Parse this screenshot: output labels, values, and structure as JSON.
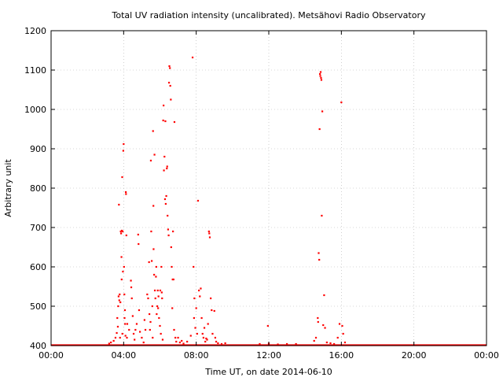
{
  "chart_data": {
    "type": "scatter",
    "title": "Total UV radiation intensity (uncalibrated). Metsähovi Radio Observatory",
    "xlabel": "Time UT, on date 2014-06-10",
    "ylabel": "Arbitrary unit",
    "x_unit": "hours UT",
    "xlim": [
      0,
      24
    ],
    "ylim": [
      400,
      1200
    ],
    "x_ticks": [
      {
        "value": 0,
        "label": "00:00"
      },
      {
        "value": 4,
        "label": "04:00"
      },
      {
        "value": 8,
        "label": "08:00"
      },
      {
        "value": 12,
        "label": "12:00"
      },
      {
        "value": 16,
        "label": "16:00"
      },
      {
        "value": 20,
        "label": "20:00"
      },
      {
        "value": 24,
        "label": "00:00"
      }
    ],
    "y_ticks": [
      {
        "value": 400,
        "label": "400"
      },
      {
        "value": 500,
        "label": "500"
      },
      {
        "value": 600,
        "label": "600"
      },
      {
        "value": 700,
        "label": "700"
      },
      {
        "value": 800,
        "label": "800"
      },
      {
        "value": 900,
        "label": "900"
      },
      {
        "value": 1000,
        "label": "1000"
      },
      {
        "value": 1100,
        "label": "1100"
      },
      {
        "value": 1200,
        "label": "1200"
      }
    ],
    "grid": true,
    "grid_style": "dotted",
    "legend": "none",
    "marker_color": "#ff0000",
    "baseline": {
      "value": 401,
      "x_range": [
        0,
        24
      ],
      "note": "continuous dense points along the bottom"
    },
    "points": [
      [
        3.2,
        405
      ],
      [
        3.3,
        408
      ],
      [
        3.45,
        412
      ],
      [
        3.55,
        420
      ],
      [
        3.62,
        432
      ],
      [
        3.65,
        470
      ],
      [
        3.68,
        448
      ],
      [
        3.7,
        500
      ],
      [
        3.72,
        525
      ],
      [
        3.74,
        758
      ],
      [
        3.76,
        515
      ],
      [
        3.78,
        530
      ],
      [
        3.8,
        420
      ],
      [
        3.82,
        510
      ],
      [
        3.84,
        690
      ],
      [
        3.86,
        685
      ],
      [
        3.88,
        625
      ],
      [
        3.89,
        568
      ],
      [
        3.9,
        692
      ],
      [
        3.92,
        828
      ],
      [
        3.93,
        430
      ],
      [
        3.95,
        690
      ],
      [
        3.96,
        588
      ],
      [
        3.98,
        895
      ],
      [
        4.0,
        912
      ],
      [
        4.02,
        600
      ],
      [
        4.04,
        530
      ],
      [
        4.05,
        470
      ],
      [
        4.07,
        490
      ],
      [
        4.08,
        455
      ],
      [
        4.1,
        425
      ],
      [
        4.12,
        790
      ],
      [
        4.13,
        785
      ],
      [
        4.15,
        680
      ],
      [
        4.18,
        420
      ],
      [
        4.2,
        455
      ],
      [
        4.3,
        440
      ],
      [
        4.4,
        565
      ],
      [
        4.42,
        548
      ],
      [
        4.45,
        520
      ],
      [
        4.5,
        475
      ],
      [
        4.55,
        430
      ],
      [
        4.6,
        415
      ],
      [
        4.65,
        440
      ],
      [
        4.72,
        455
      ],
      [
        4.8,
        682
      ],
      [
        4.82,
        658
      ],
      [
        4.85,
        490
      ],
      [
        4.9,
        435
      ],
      [
        5.0,
        420
      ],
      [
        5.1,
        408
      ],
      [
        5.15,
        465
      ],
      [
        5.2,
        440
      ],
      [
        5.3,
        530
      ],
      [
        5.35,
        520
      ],
      [
        5.4,
        612
      ],
      [
        5.42,
        480
      ],
      [
        5.45,
        440
      ],
      [
        5.48,
        460
      ],
      [
        5.5,
        870
      ],
      [
        5.52,
        690
      ],
      [
        5.55,
        615
      ],
      [
        5.58,
        500
      ],
      [
        5.6,
        420
      ],
      [
        5.62,
        945
      ],
      [
        5.64,
        755
      ],
      [
        5.65,
        645
      ],
      [
        5.68,
        580
      ],
      [
        5.7,
        885
      ],
      [
        5.72,
        540
      ],
      [
        5.75,
        520
      ],
      [
        5.78,
        575
      ],
      [
        5.8,
        600
      ],
      [
        5.82,
        480
      ],
      [
        5.85,
        500
      ],
      [
        5.88,
        540
      ],
      [
        5.9,
        495
      ],
      [
        5.92,
        525
      ],
      [
        5.95,
        470
      ],
      [
        6.0,
        450
      ],
      [
        6.02,
        540
      ],
      [
        6.05,
        430
      ],
      [
        6.08,
        600
      ],
      [
        6.1,
        535
      ],
      [
        6.12,
        520
      ],
      [
        6.15,
        415
      ],
      [
        6.18,
        972
      ],
      [
        6.2,
        1010
      ],
      [
        6.22,
        845
      ],
      [
        6.25,
        880
      ],
      [
        6.28,
        772
      ],
      [
        6.3,
        970
      ],
      [
        6.32,
        760
      ],
      [
        6.35,
        780
      ],
      [
        6.38,
        850
      ],
      [
        6.4,
        855
      ],
      [
        6.42,
        730
      ],
      [
        6.45,
        695
      ],
      [
        6.48,
        680
      ],
      [
        6.5,
        1068
      ],
      [
        6.52,
        1110
      ],
      [
        6.55,
        1105
      ],
      [
        6.57,
        1060
      ],
      [
        6.6,
        1025
      ],
      [
        6.62,
        650
      ],
      [
        6.65,
        600
      ],
      [
        6.68,
        495
      ],
      [
        6.7,
        568
      ],
      [
        6.72,
        690
      ],
      [
        6.75,
        568
      ],
      [
        6.78,
        440
      ],
      [
        6.8,
        968
      ],
      [
        6.85,
        420
      ],
      [
        6.9,
        410
      ],
      [
        7.0,
        420
      ],
      [
        7.1,
        408
      ],
      [
        7.2,
        412
      ],
      [
        7.3,
        405
      ],
      [
        7.5,
        410
      ],
      [
        7.7,
        425
      ],
      [
        7.8,
        1132
      ],
      [
        7.85,
        600
      ],
      [
        7.88,
        470
      ],
      [
        7.9,
        520
      ],
      [
        7.95,
        445
      ],
      [
        8.0,
        495
      ],
      [
        8.05,
        430
      ],
      [
        8.1,
        768
      ],
      [
        8.15,
        540
      ],
      [
        8.2,
        525
      ],
      [
        8.25,
        545
      ],
      [
        8.3,
        470
      ],
      [
        8.35,
        430
      ],
      [
        8.4,
        420
      ],
      [
        8.45,
        445
      ],
      [
        8.5,
        410
      ],
      [
        8.55,
        418
      ],
      [
        8.6,
        415
      ],
      [
        8.65,
        455
      ],
      [
        8.7,
        690
      ],
      [
        8.72,
        685
      ],
      [
        8.75,
        675
      ],
      [
        8.8,
        520
      ],
      [
        8.85,
        490
      ],
      [
        8.9,
        430
      ],
      [
        9.0,
        488
      ],
      [
        9.05,
        420
      ],
      [
        9.1,
        410
      ],
      [
        9.2,
        406
      ],
      [
        9.4,
        404
      ],
      [
        9.6,
        406
      ],
      [
        11.95,
        450
      ],
      [
        12.0,
        405
      ],
      [
        11.5,
        404
      ],
      [
        12.5,
        403
      ],
      [
        13.0,
        404
      ],
      [
        13.5,
        404
      ],
      [
        14.5,
        412
      ],
      [
        14.6,
        420
      ],
      [
        14.7,
        470
      ],
      [
        14.72,
        460
      ],
      [
        14.75,
        635
      ],
      [
        14.78,
        618
      ],
      [
        14.8,
        950
      ],
      [
        14.82,
        1090
      ],
      [
        14.84,
        1085
      ],
      [
        14.86,
        1095
      ],
      [
        14.88,
        1080
      ],
      [
        14.9,
        1075
      ],
      [
        14.92,
        730
      ],
      [
        14.95,
        995
      ],
      [
        15.0,
        452
      ],
      [
        15.05,
        528
      ],
      [
        15.1,
        445
      ],
      [
        15.2,
        408
      ],
      [
        15.4,
        406
      ],
      [
        15.6,
        404
      ],
      [
        15.8,
        420
      ],
      [
        15.9,
        455
      ],
      [
        16.0,
        1018
      ],
      [
        16.05,
        450
      ],
      [
        16.1,
        430
      ],
      [
        16.2,
        408
      ]
    ]
  }
}
